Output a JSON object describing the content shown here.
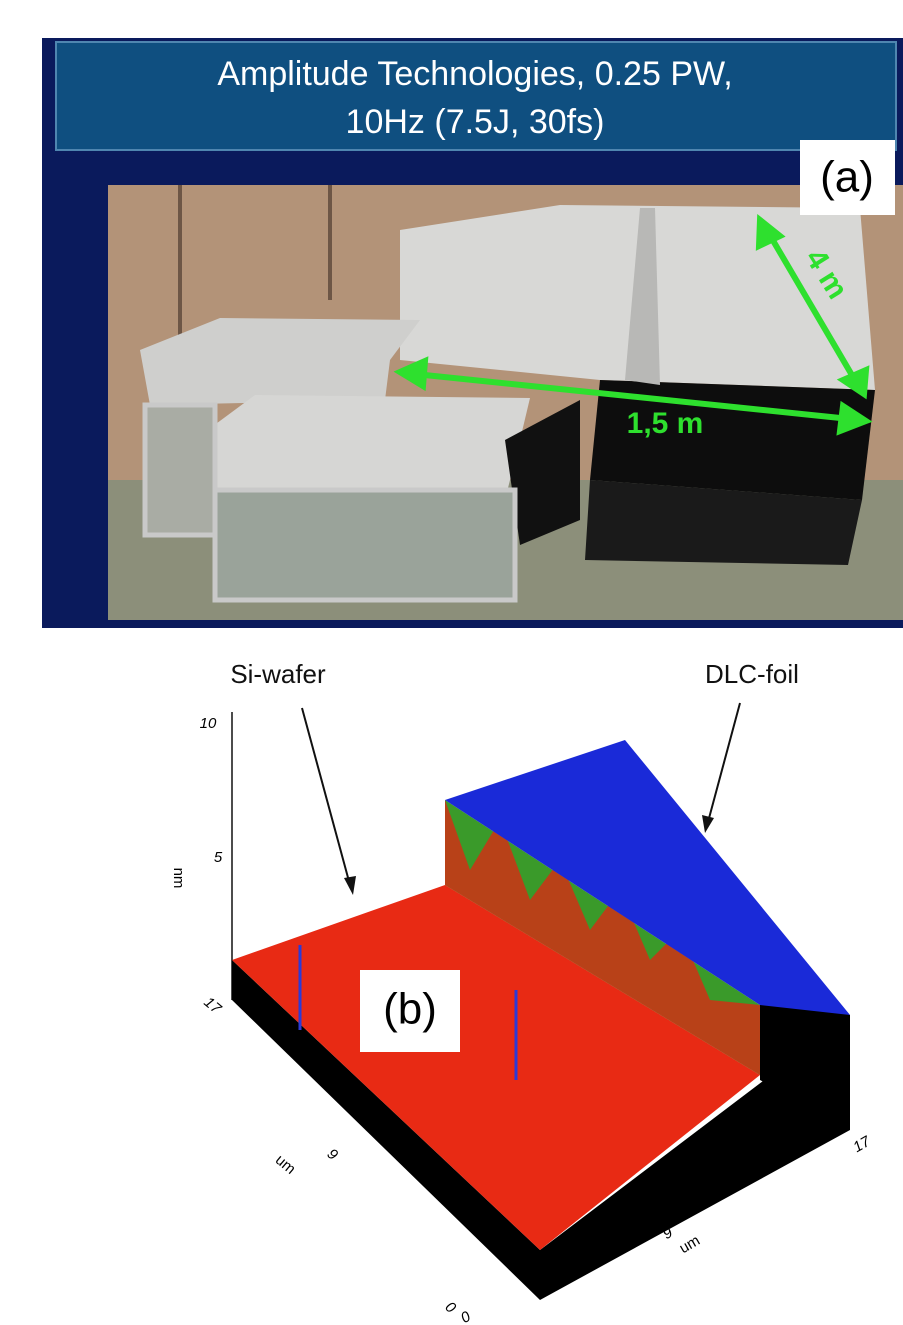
{
  "panel_a": {
    "title_lines": [
      "Amplitude Technologies, 0.25 PW,",
      "10Hz (7.5J, 30fs)"
    ],
    "label": "(a)",
    "dimension_labels": [
      "4 m",
      "1,5 m"
    ]
  },
  "panel_b": {
    "label": "(b)",
    "annotations": [
      "Si-wafer",
      "DLC-foil"
    ],
    "z_axis": {
      "ticks": [
        "10",
        "5"
      ],
      "label": "nm"
    },
    "left_axis": {
      "ticks": [
        "17",
        "9",
        "0"
      ],
      "label": "um"
    },
    "bottom_axis": {
      "ticks": [
        "0",
        "9",
        "17"
      ],
      "label": "um"
    }
  }
}
